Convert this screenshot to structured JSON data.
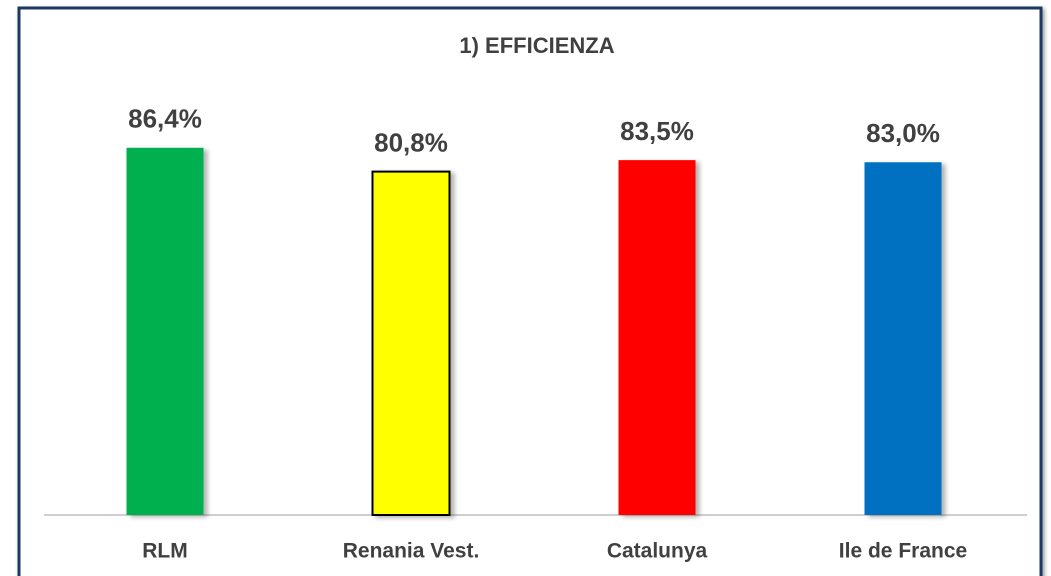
{
  "chart_data": {
    "type": "bar",
    "title": "1)  EFFICIENZA",
    "categories": [
      "RLM",
      "Renania Vest.",
      "Catalunya",
      "Ile de France"
    ],
    "values": [
      86.4,
      80.8,
      83.5,
      83.0
    ],
    "value_labels": [
      "86,4%",
      "80,8%",
      "83,5%",
      "83,0%"
    ],
    "colors": [
      "#00b050",
      "#ffff00",
      "#ff0000",
      "#0070c0"
    ],
    "edgecolors": [
      null,
      "#000000",
      null,
      null
    ],
    "ylim": [
      0,
      100
    ]
  }
}
